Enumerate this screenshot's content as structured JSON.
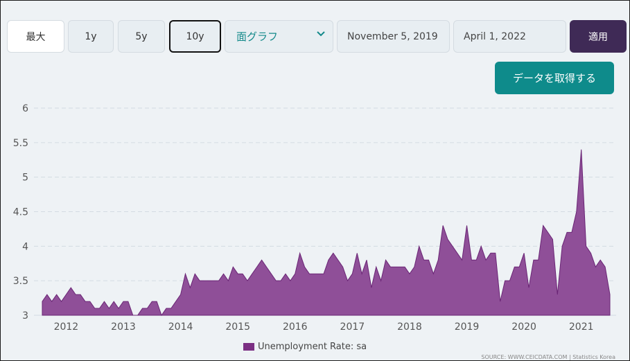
{
  "controls": {
    "range_buttons": [
      "最大",
      "1y",
      "5y",
      "10y"
    ],
    "active_range": "10y",
    "chart_type": "面グラフ",
    "start_date": "November 5, 2019",
    "end_date": "April 1, 2022",
    "apply_label": "適用",
    "fetch_label": "データを取得する"
  },
  "colors": {
    "area_fill": "#8f4f98",
    "area_stroke": "#6a2575",
    "apply_bg": "#3f2a56",
    "fetch_bg": "#0e8b8b",
    "select_text": "#13898a"
  },
  "legend": {
    "label": "Unemployment Rate: sa"
  },
  "source": {
    "text": "SOURCE: WWW.CEICDATA.COM | Statistics Korea"
  },
  "chart_data": {
    "type": "area",
    "x_start": "2011-08",
    "frequency": "monthly",
    "values": [
      3.2,
      3.3,
      3.2,
      3.3,
      3.2,
      3.3,
      3.4,
      3.3,
      3.3,
      3.2,
      3.2,
      3.1,
      3.1,
      3.2,
      3.1,
      3.2,
      3.1,
      3.2,
      3.2,
      3.0,
      3.0,
      3.1,
      3.1,
      3.2,
      3.2,
      3.0,
      3.1,
      3.1,
      3.2,
      3.3,
      3.6,
      3.4,
      3.6,
      3.5,
      3.5,
      3.5,
      3.5,
      3.5,
      3.6,
      3.5,
      3.7,
      3.6,
      3.6,
      3.5,
      3.6,
      3.7,
      3.8,
      3.7,
      3.6,
      3.5,
      3.5,
      3.6,
      3.5,
      3.6,
      3.9,
      3.7,
      3.6,
      3.6,
      3.6,
      3.6,
      3.8,
      3.9,
      3.8,
      3.7,
      3.5,
      3.6,
      3.9,
      3.6,
      3.8,
      3.4,
      3.7,
      3.5,
      3.8,
      3.7,
      3.7,
      3.7,
      3.7,
      3.6,
      3.7,
      4.0,
      3.8,
      3.8,
      3.6,
      3.8,
      4.3,
      4.1,
      4.0,
      3.9,
      3.8,
      4.3,
      3.8,
      3.8,
      4.0,
      3.8,
      3.9,
      3.9,
      3.2,
      3.5,
      3.5,
      3.7,
      3.7,
      3.9,
      3.4,
      3.8,
      3.8,
      4.3,
      4.2,
      4.1,
      3.3,
      4.0,
      4.2,
      4.2,
      4.5,
      5.4,
      4.0,
      3.9,
      3.7,
      3.8,
      3.7,
      3.3
    ],
    "x_ticks": [
      "2012",
      "2013",
      "2014",
      "2015",
      "2016",
      "2017",
      "2018",
      "2019",
      "2020",
      "2021"
    ],
    "y_ticks": [
      "3",
      "3.5",
      "4",
      "4.5",
      "5",
      "5.5",
      "6"
    ],
    "ylim": [
      3,
      6
    ],
    "grid": true,
    "legend_position": "bottom"
  }
}
